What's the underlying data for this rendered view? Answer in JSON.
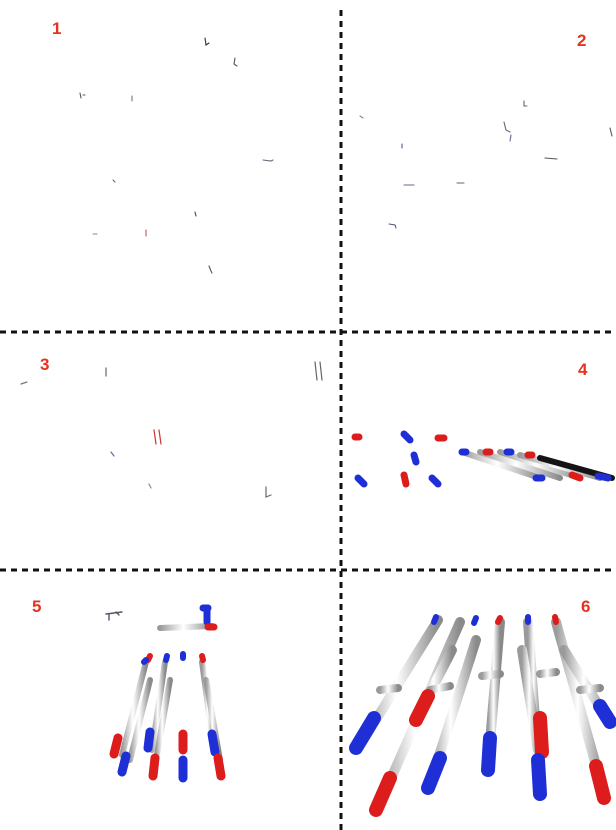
{
  "label_color": "#e8321f",
  "colors": {
    "carbon": "#e7e7e7",
    "oxygen": "#dd1c1c",
    "nitrogen": "#1f2fd6",
    "dark": "#101010",
    "divider": "#111111"
  },
  "panels": [
    {
      "number": "1"
    },
    {
      "number": "2"
    },
    {
      "number": "3"
    },
    {
      "number": "4"
    },
    {
      "number": "5"
    },
    {
      "number": "6"
    }
  ]
}
